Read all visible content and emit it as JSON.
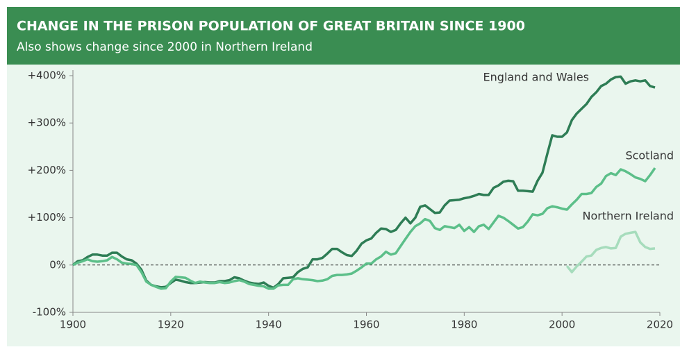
{
  "chart_data": {
    "type": "line",
    "title": "CHANGE IN THE PRISON POPULATION  OF GREAT BRITAIN SINCE 1900",
    "subtitle": "Also shows change since 2000 in Northern Ireland",
    "x": [
      1900,
      1901,
      1902,
      1903,
      1904,
      1905,
      1906,
      1907,
      1908,
      1909,
      1910,
      1911,
      1912,
      1913,
      1914,
      1915,
      1916,
      1917,
      1918,
      1919,
      1920,
      1921,
      1922,
      1923,
      1924,
      1925,
      1926,
      1927,
      1928,
      1929,
      1930,
      1931,
      1932,
      1933,
      1934,
      1935,
      1936,
      1937,
      1938,
      1939,
      1940,
      1941,
      1942,
      1943,
      1944,
      1945,
      1946,
      1947,
      1948,
      1949,
      1950,
      1951,
      1952,
      1953,
      1954,
      1955,
      1956,
      1957,
      1958,
      1959,
      1960,
      1961,
      1962,
      1963,
      1964,
      1965,
      1966,
      1967,
      1968,
      1969,
      1970,
      1971,
      1972,
      1973,
      1974,
      1975,
      1976,
      1977,
      1978,
      1979,
      1980,
      1981,
      1982,
      1983,
      1984,
      1985,
      1986,
      1987,
      1988,
      1989,
      1990,
      1991,
      1992,
      1993,
      1994,
      1995,
      1996,
      1997,
      1998,
      1999,
      2000,
      2001,
      2002,
      2003,
      2004,
      2005,
      2006,
      2007,
      2008,
      2009,
      2010,
      2011,
      2012,
      2013,
      2014,
      2015,
      2016,
      2017,
      2018,
      2019
    ],
    "series": [
      {
        "name": "England and Wales",
        "color": "#2e7d55",
        "values": [
          0,
          8,
          10,
          17,
          22,
          22,
          20,
          20,
          26,
          26,
          18,
          12,
          10,
          3,
          -10,
          -33,
          -42,
          -45,
          -47,
          -46,
          -38,
          -31,
          -33,
          -36,
          -38,
          -38,
          -37,
          -36,
          -37,
          -37,
          -34,
          -34,
          -32,
          -26,
          -28,
          -33,
          -37,
          -39,
          -40,
          -37,
          -44,
          -48,
          -40,
          -28,
          -27,
          -26,
          -15,
          -8,
          -5,
          12,
          12,
          15,
          24,
          34,
          34,
          27,
          21,
          19,
          30,
          45,
          52,
          56,
          68,
          77,
          76,
          70,
          74,
          88,
          100,
          88,
          100,
          123,
          126,
          118,
          110,
          111,
          126,
          136,
          137,
          138,
          141,
          143,
          146,
          150,
          148,
          148,
          163,
          168,
          176,
          178,
          177,
          157,
          157,
          156,
          155,
          178,
          195,
          235,
          274,
          271,
          271,
          280,
          306,
          320,
          330,
          340,
          355,
          365,
          378,
          383,
          392,
          397,
          398,
          383,
          388,
          390,
          388,
          390,
          378,
          375
        ]
      },
      {
        "name": "Scotland",
        "color": "#5cbf89",
        "values": [
          0,
          5,
          8,
          12,
          8,
          7,
          8,
          10,
          17,
          12,
          5,
          3,
          2,
          0,
          -15,
          -35,
          -42,
          -46,
          -50,
          -49,
          -35,
          -25,
          -26,
          -27,
          -33,
          -38,
          -35,
          -37,
          -38,
          -38,
          -36,
          -38,
          -37,
          -34,
          -32,
          -35,
          -40,
          -42,
          -44,
          -45,
          -50,
          -50,
          -43,
          -42,
          -42,
          -30,
          -28,
          -30,
          -31,
          -32,
          -34,
          -33,
          -30,
          -23,
          -21,
          -21,
          -20,
          -18,
          -12,
          -5,
          3,
          3,
          12,
          18,
          28,
          22,
          25,
          40,
          55,
          70,
          82,
          88,
          97,
          93,
          78,
          74,
          82,
          80,
          78,
          85,
          72,
          80,
          70,
          82,
          85,
          76,
          90,
          104,
          100,
          93,
          85,
          77,
          80,
          92,
          107,
          105,
          108,
          120,
          124,
          122,
          119,
          117,
          128,
          138,
          150,
          150,
          152,
          165,
          172,
          188,
          194,
          190,
          202,
          198,
          192,
          185,
          182,
          177,
          190,
          205
        ]
      },
      {
        "name": "Northern Ireland",
        "color": "#a6dcbc",
        "values": [
          null,
          null,
          null,
          null,
          null,
          null,
          null,
          null,
          null,
          null,
          null,
          null,
          null,
          null,
          null,
          null,
          null,
          null,
          null,
          null,
          null,
          null,
          null,
          null,
          null,
          null,
          null,
          null,
          null,
          null,
          null,
          null,
          null,
          null,
          null,
          null,
          null,
          null,
          null,
          null,
          null,
          null,
          null,
          null,
          null,
          null,
          null,
          null,
          null,
          null,
          null,
          null,
          null,
          null,
          null,
          null,
          null,
          null,
          null,
          null,
          null,
          null,
          null,
          null,
          null,
          null,
          null,
          null,
          null,
          null,
          null,
          null,
          null,
          null,
          null,
          null,
          null,
          null,
          null,
          null,
          null,
          null,
          null,
          null,
          null,
          null,
          null,
          null,
          null,
          null,
          null,
          null,
          null,
          null,
          null,
          null,
          null,
          null,
          null,
          null,
          null,
          -2,
          -15,
          -3,
          7,
          18,
          20,
          32,
          36,
          38,
          35,
          36,
          60,
          66,
          68,
          70,
          48,
          38,
          34,
          35
        ]
      }
    ],
    "xlim": [
      1900,
      2020
    ],
    "xticks": [
      1900,
      1920,
      1940,
      1960,
      1980,
      2000,
      2020
    ],
    "ylim": [
      -100,
      400
    ],
    "yticks": [
      {
        "value": 400,
        "label": "+400%"
      },
      {
        "value": 300,
        "label": "+300%"
      },
      {
        "value": 200,
        "label": "+200%"
      },
      {
        "value": 100,
        "label": "+100%"
      },
      {
        "value": 0,
        "label": "0%"
      },
      {
        "value": -100,
        "label": "-100%"
      }
    ]
  }
}
